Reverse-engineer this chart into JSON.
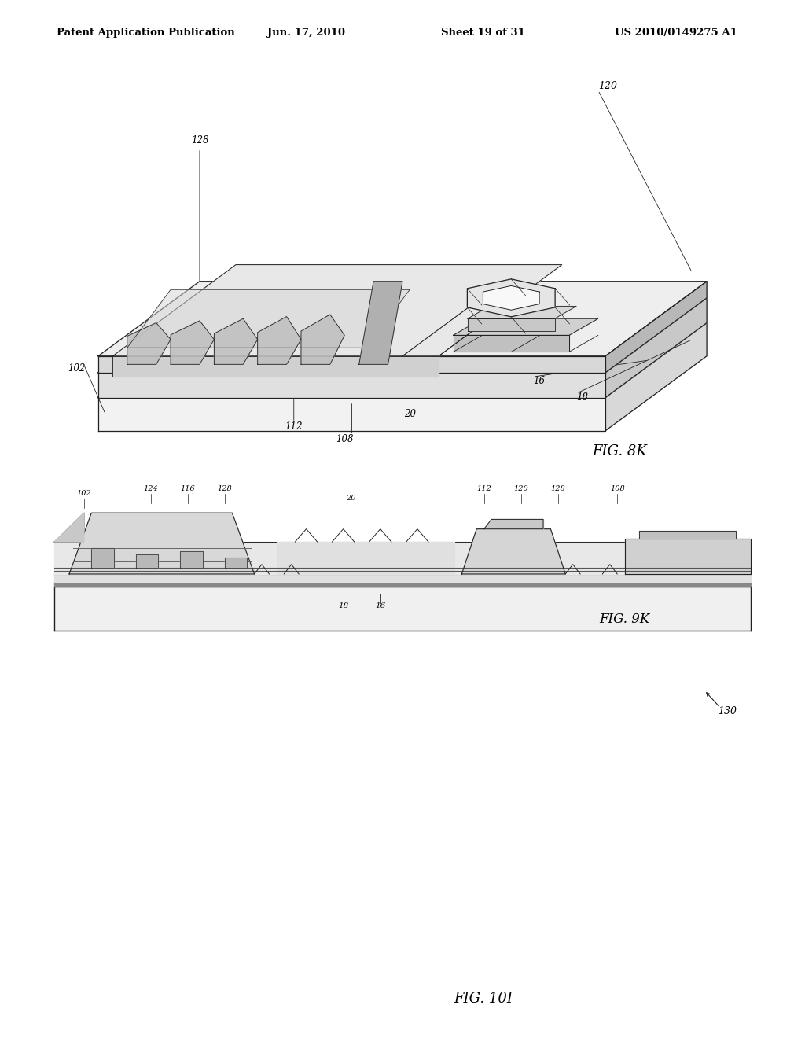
{
  "page_bg": "#ffffff",
  "header_text": "Patent Application Publication",
  "header_date": "Jun. 17, 2010",
  "header_sheet": "Sheet 19 of 31",
  "header_patent": "US 2010/0149275 A1",
  "fig8k_label": "FIG. 8K",
  "fig9k_label": "FIG. 9K",
  "fig10i_label": "FIG. 10I",
  "dark_bg_color": "#2a2a2a",
  "white_color": "#ffffff",
  "line_color": "#222222"
}
